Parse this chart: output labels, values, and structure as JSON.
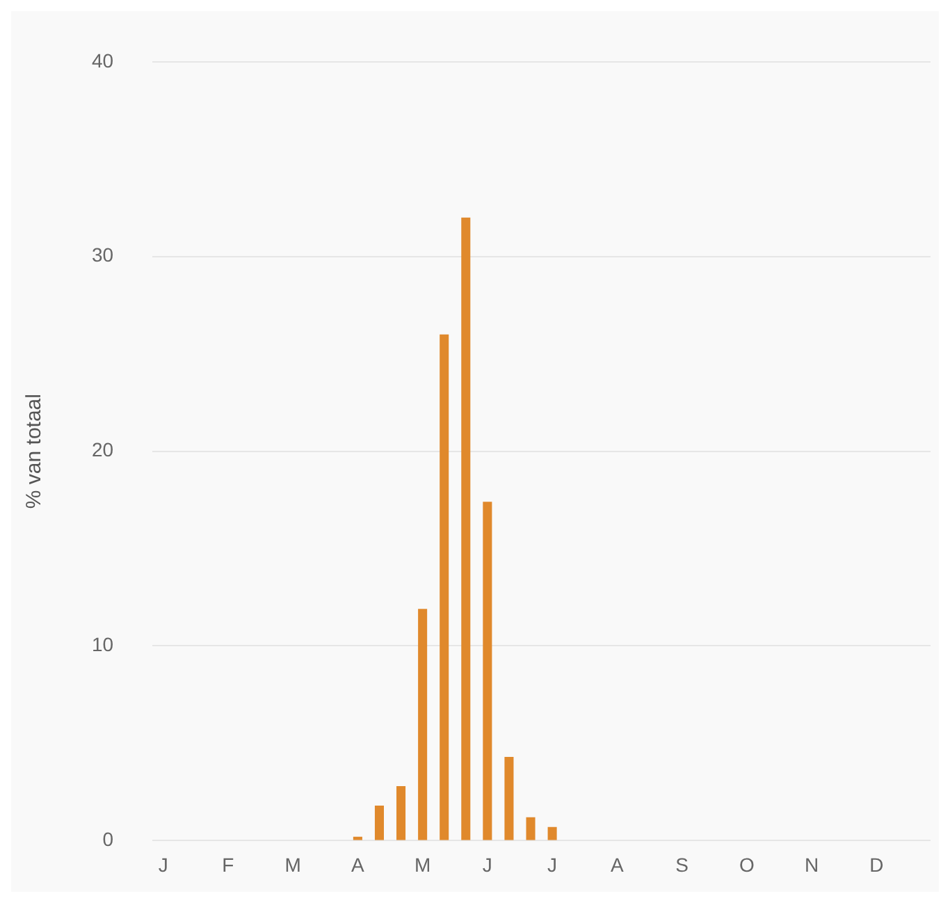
{
  "chart_data": {
    "type": "bar",
    "ylabel": "% van totaal",
    "categories": [
      "J",
      null,
      null,
      "F",
      null,
      null,
      "M",
      null,
      null,
      "A",
      null,
      null,
      "M",
      null,
      null,
      "J",
      null,
      null,
      "J",
      null,
      null,
      "A",
      null,
      null,
      "S",
      null,
      null,
      "O",
      null,
      null,
      "N",
      null,
      null,
      "D",
      null,
      null
    ],
    "values": [
      0,
      0,
      0,
      0,
      0,
      0,
      0,
      0,
      0,
      0.2,
      1.8,
      2.8,
      11.9,
      26,
      32,
      17.4,
      4.3,
      1.2,
      0.7,
      0,
      0,
      0,
      0,
      0,
      0,
      0,
      0,
      0,
      0,
      0,
      0,
      0,
      0,
      0,
      0,
      0
    ],
    "color": "#e0892c",
    "ylim": [
      0,
      40
    ],
    "yticks": [
      0,
      10,
      20,
      30,
      40
    ],
    "grid": "y",
    "legend": false
  }
}
